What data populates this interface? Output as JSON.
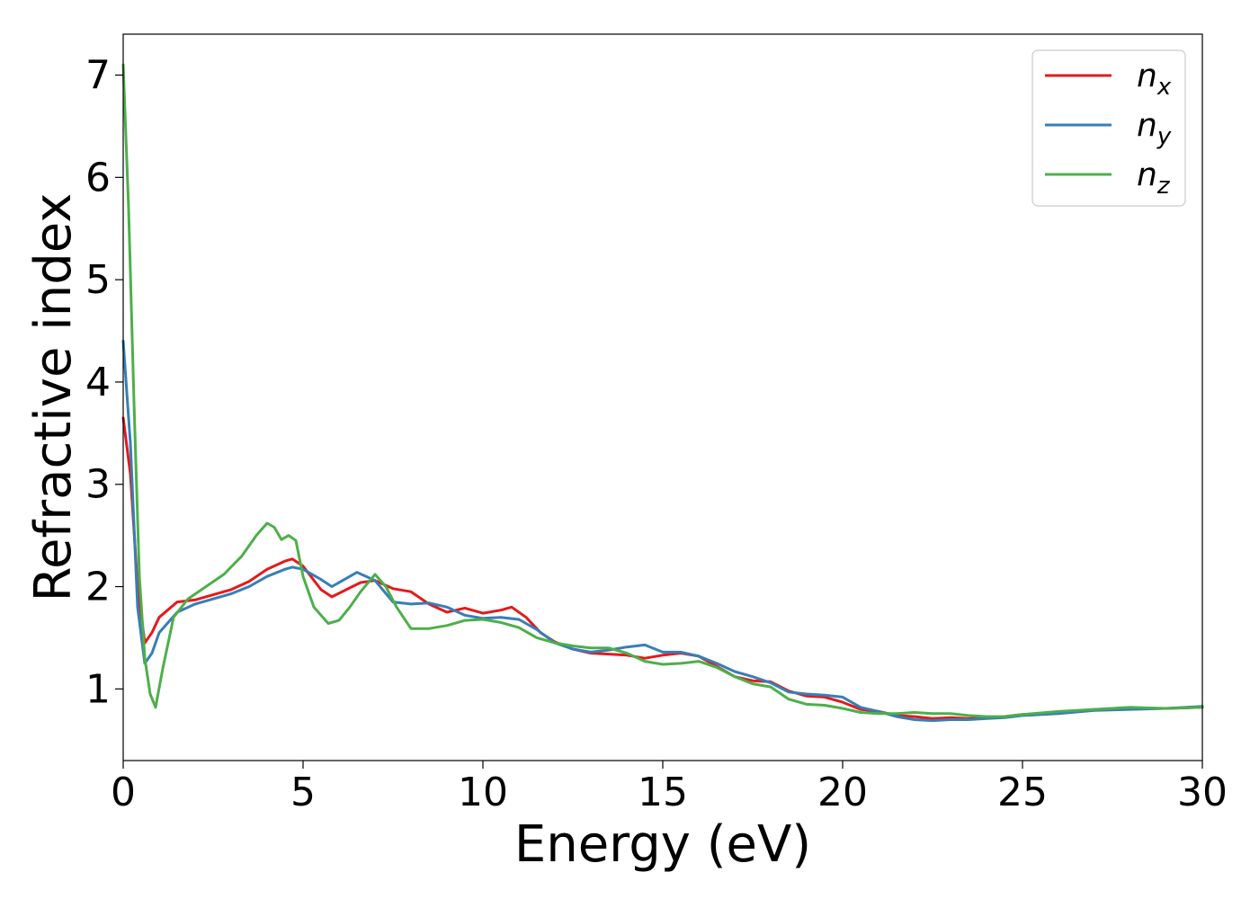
{
  "chart_data": {
    "type": "line",
    "xlabel": "Energy (eV)",
    "ylabel": "Refractive index",
    "xlim": [
      0,
      30
    ],
    "ylim": [
      0.3,
      7.4
    ],
    "xticks": [
      0,
      5,
      10,
      15,
      20,
      25,
      30
    ],
    "xtick_labels": [
      "0",
      "5",
      "10",
      "15",
      "20",
      "25",
      "30"
    ],
    "yticks": [
      1,
      2,
      3,
      4,
      5,
      6,
      7
    ],
    "ytick_labels": [
      "1",
      "2",
      "3",
      "4",
      "5",
      "6",
      "7"
    ],
    "grid": false,
    "legend_position": "top-right",
    "series": [
      {
        "name": "n_x",
        "label_main": "n",
        "label_sub": "x",
        "color": "#e41a1c",
        "x": [
          0,
          0.2,
          0.4,
          0.6,
          0.8,
          1.0,
          1.5,
          2.0,
          2.5,
          3.0,
          3.5,
          4.0,
          4.5,
          4.7,
          5.0,
          5.5,
          5.8,
          6.2,
          6.6,
          7.0,
          7.5,
          8.0,
          8.5,
          9.0,
          9.5,
          10.0,
          10.5,
          10.8,
          11.2,
          11.6,
          12.0,
          12.5,
          13.0,
          13.5,
          14.0,
          14.5,
          15.0,
          15.5,
          16.0,
          16.5,
          17.0,
          17.5,
          18.0,
          18.5,
          19.0,
          19.5,
          20.0,
          20.5,
          21.0,
          21.5,
          22.0,
          22.5,
          23.0,
          23.5,
          24.0,
          24.5,
          25.0,
          26.0,
          27.0,
          28.0,
          29.0,
          30.0
        ],
        "y": [
          3.65,
          3.1,
          2.0,
          1.45,
          1.55,
          1.7,
          1.85,
          1.87,
          1.92,
          1.97,
          2.05,
          2.17,
          2.25,
          2.27,
          2.2,
          1.97,
          1.9,
          1.97,
          2.04,
          2.06,
          1.98,
          1.95,
          1.83,
          1.75,
          1.79,
          1.74,
          1.77,
          1.8,
          1.7,
          1.55,
          1.46,
          1.39,
          1.35,
          1.34,
          1.33,
          1.3,
          1.33,
          1.35,
          1.32,
          1.22,
          1.12,
          1.08,
          1.07,
          0.98,
          0.93,
          0.92,
          0.87,
          0.8,
          0.78,
          0.74,
          0.73,
          0.71,
          0.72,
          0.71,
          0.72,
          0.73,
          0.75,
          0.77,
          0.8,
          0.81,
          0.81,
          0.82
        ]
      },
      {
        "name": "n_y",
        "label_main": "n",
        "label_sub": "y",
        "color": "#377eb8",
        "x": [
          0,
          0.2,
          0.4,
          0.6,
          0.8,
          1.0,
          1.5,
          2.0,
          2.5,
          3.0,
          3.5,
          4.0,
          4.5,
          4.7,
          5.0,
          5.5,
          5.8,
          6.2,
          6.5,
          7.0,
          7.5,
          8.0,
          8.5,
          9.0,
          9.5,
          10.0,
          10.5,
          11.0,
          11.5,
          12.0,
          12.5,
          13.0,
          13.5,
          14.0,
          14.5,
          15.0,
          15.5,
          16.0,
          16.5,
          17.0,
          17.5,
          18.0,
          18.5,
          19.0,
          19.5,
          20.0,
          20.5,
          21.0,
          21.5,
          22.0,
          22.5,
          23.0,
          23.5,
          24.0,
          24.5,
          25.0,
          26.0,
          27.0,
          28.0,
          29.0,
          30.0
        ],
        "y": [
          4.4,
          3.4,
          1.8,
          1.25,
          1.35,
          1.55,
          1.75,
          1.83,
          1.88,
          1.93,
          2.0,
          2.1,
          2.17,
          2.19,
          2.17,
          2.07,
          2.0,
          2.08,
          2.14,
          2.06,
          1.85,
          1.83,
          1.84,
          1.8,
          1.72,
          1.69,
          1.7,
          1.68,
          1.58,
          1.45,
          1.39,
          1.36,
          1.38,
          1.41,
          1.43,
          1.36,
          1.36,
          1.32,
          1.25,
          1.17,
          1.12,
          1.06,
          0.97,
          0.95,
          0.94,
          0.92,
          0.82,
          0.78,
          0.73,
          0.7,
          0.69,
          0.7,
          0.7,
          0.71,
          0.72,
          0.74,
          0.76,
          0.79,
          0.8,
          0.81,
          0.83
        ]
      },
      {
        "name": "n_z",
        "label_main": "n",
        "label_sub": "z",
        "color": "#4daf4a",
        "x": [
          0,
          0.15,
          0.3,
          0.45,
          0.6,
          0.75,
          0.9,
          1.1,
          1.4,
          1.8,
          2.3,
          2.8,
          3.3,
          3.7,
          4.0,
          4.2,
          4.4,
          4.6,
          4.8,
          5.0,
          5.3,
          5.7,
          6.0,
          6.3,
          6.6,
          7.0,
          7.3,
          7.6,
          8.0,
          8.5,
          9.0,
          9.5,
          10.0,
          10.5,
          11.0,
          11.5,
          12.0,
          12.5,
          13.0,
          13.5,
          14.0,
          14.5,
          15.0,
          15.5,
          16.0,
          16.5,
          17.0,
          17.5,
          18.0,
          18.5,
          19.0,
          19.5,
          20.0,
          20.5,
          21.0,
          21.5,
          22.0,
          22.5,
          23.0,
          23.5,
          24.0,
          24.5,
          25.0,
          26.0,
          27.0,
          28.0,
          29.0,
          30.0
        ],
        "y": [
          7.1,
          5.7,
          3.8,
          2.1,
          1.3,
          0.95,
          0.82,
          1.2,
          1.7,
          1.88,
          2.0,
          2.12,
          2.3,
          2.5,
          2.62,
          2.58,
          2.46,
          2.5,
          2.45,
          2.1,
          1.8,
          1.64,
          1.67,
          1.8,
          1.95,
          2.12,
          2.0,
          1.8,
          1.59,
          1.59,
          1.62,
          1.67,
          1.68,
          1.65,
          1.6,
          1.5,
          1.45,
          1.42,
          1.4,
          1.4,
          1.35,
          1.27,
          1.24,
          1.25,
          1.27,
          1.21,
          1.12,
          1.05,
          1.02,
          0.9,
          0.85,
          0.84,
          0.81,
          0.77,
          0.76,
          0.76,
          0.77,
          0.76,
          0.76,
          0.74,
          0.73,
          0.73,
          0.75,
          0.78,
          0.8,
          0.82,
          0.81,
          0.82
        ]
      }
    ]
  }
}
